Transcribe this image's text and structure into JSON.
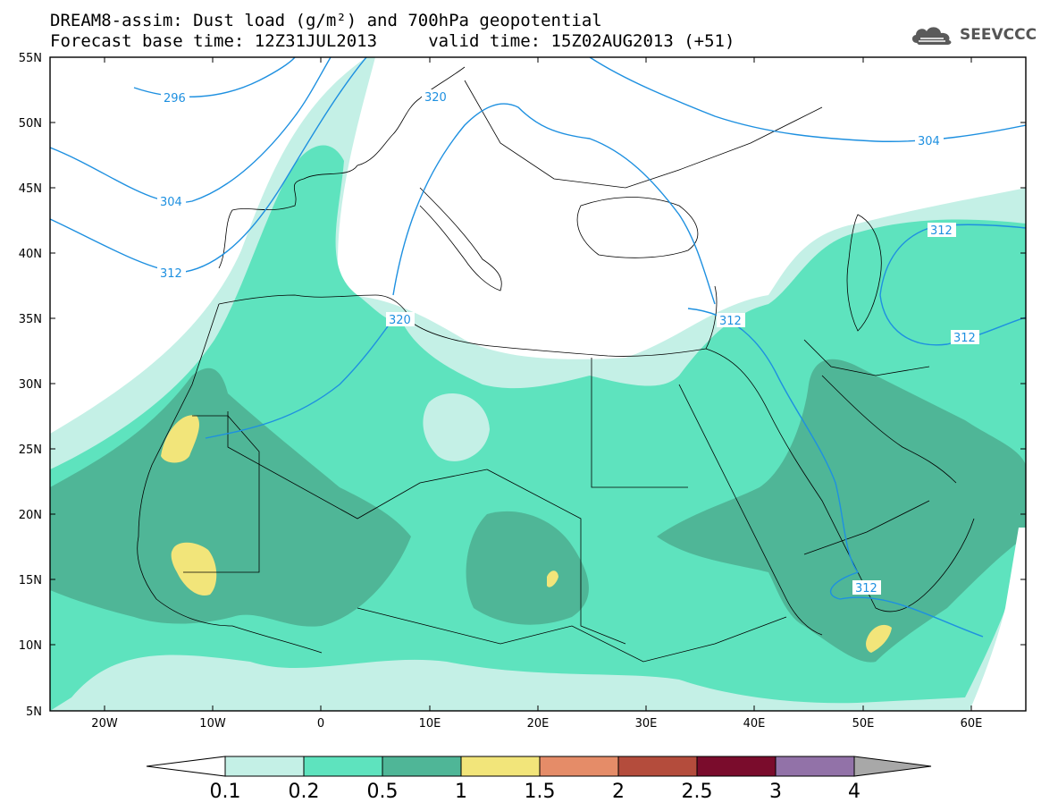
{
  "header": {
    "line1": "DREAM8-assim: Dust load (g/m²) and 700hPa geopotential",
    "line2": "Forecast base time: 12Z31JUL2013     valid time: 15Z02AUG2013 (+51)"
  },
  "logo": {
    "text": "SEEVCCC",
    "icon": "cloud-icon"
  },
  "axes": {
    "lat_labels": [
      "55N",
      "50N",
      "45N",
      "40N",
      "35N",
      "30N",
      "25N",
      "20N",
      "15N",
      "10N",
      "5N"
    ],
    "lon_labels": [
      "20W",
      "10W",
      "0",
      "10E",
      "20E",
      "30E",
      "40E",
      "50E",
      "60E"
    ]
  },
  "contours": {
    "labels": [
      "296",
      "304",
      "312",
      "320",
      "304",
      "312",
      "312",
      "312",
      "312",
      "320"
    ]
  },
  "colorbar": {
    "ticks": [
      "0.1",
      "0.2",
      "0.5",
      "1",
      "1.5",
      "2",
      "2.5",
      "3",
      "4"
    ],
    "colors": [
      "#ffffff",
      "#c4f0e6",
      "#5ee3be",
      "#4fb697",
      "#f2e57a",
      "#e58c68",
      "#b44c3c",
      "#7a0c2c",
      "#9272a8",
      "#a8a8a8"
    ]
  },
  "palette": {
    "very_light": "#c4f0e6",
    "light": "#5ee3be",
    "medium": "#4fb697",
    "yellow": "#f2e57a",
    "contour_line": "#1e90e0"
  }
}
